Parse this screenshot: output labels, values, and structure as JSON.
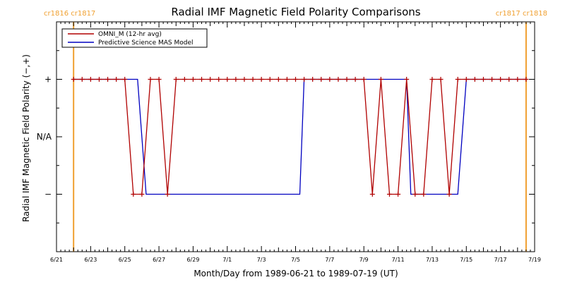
{
  "chart_data": {
    "type": "line",
    "title": "Radial IMF Magnetic Field Polarity Comparisons",
    "xlabel": "Month/Day from 1989-06-21 to 1989-07-19 (UT)",
    "ylabel": "Radial IMF Magnetic Field Polarity (−,+)",
    "xlim": [
      "1989-06-21",
      "1989-07-19"
    ],
    "ylim": [
      -2,
      2
    ],
    "y_tick_values": [
      1,
      0,
      -1
    ],
    "y_tick_labels": [
      "+",
      "N/A",
      "−"
    ],
    "x_tick_labels": [
      "6/21",
      "6/23",
      "6/25",
      "6/27",
      "6/29",
      "7/1",
      "7/3",
      "7/5",
      "7/7",
      "7/9",
      "7/11",
      "7/13",
      "7/15",
      "7/17",
      "7/19"
    ],
    "grid": false,
    "legend_position": "top-left",
    "carrington_markers": [
      {
        "date": "1989-06-22T00:00",
        "label": "cr1816 cr1817",
        "color": "#f0a030"
      },
      {
        "date": "1989-07-18T12:00",
        "label": "cr1817 cr1818",
        "color": "#f0a030"
      }
    ],
    "series": [
      {
        "name": "OMNI_M (12-hr avg)",
        "color": "#b00000",
        "marker": "+",
        "x": [
          "1989-06-22T00:00",
          "1989-06-22T12:00",
          "1989-06-23T00:00",
          "1989-06-23T12:00",
          "1989-06-24T00:00",
          "1989-06-24T12:00",
          "1989-06-25T00:00",
          "1989-06-25T12:00",
          "1989-06-26T00:00",
          "1989-06-26T12:00",
          "1989-06-27T00:00",
          "1989-06-27T12:00",
          "1989-06-28T00:00",
          "1989-06-28T12:00",
          "1989-06-29T00:00",
          "1989-06-29T12:00",
          "1989-06-30T00:00",
          "1989-06-30T12:00",
          "1989-07-01T00:00",
          "1989-07-01T12:00",
          "1989-07-02T00:00",
          "1989-07-02T12:00",
          "1989-07-03T00:00",
          "1989-07-03T12:00",
          "1989-07-04T00:00",
          "1989-07-04T12:00",
          "1989-07-05T00:00",
          "1989-07-05T12:00",
          "1989-07-06T00:00",
          "1989-07-06T12:00",
          "1989-07-07T00:00",
          "1989-07-07T12:00",
          "1989-07-08T00:00",
          "1989-07-08T12:00",
          "1989-07-09T00:00",
          "1989-07-09T12:00",
          "1989-07-10T00:00",
          "1989-07-10T12:00",
          "1989-07-11T00:00",
          "1989-07-11T12:00",
          "1989-07-12T00:00",
          "1989-07-12T12:00",
          "1989-07-13T00:00",
          "1989-07-13T12:00",
          "1989-07-14T00:00",
          "1989-07-14T12:00",
          "1989-07-15T00:00",
          "1989-07-15T12:00",
          "1989-07-16T00:00",
          "1989-07-16T12:00",
          "1989-07-17T00:00",
          "1989-07-17T12:00",
          "1989-07-18T00:00",
          "1989-07-18T12:00"
        ],
        "values": [
          1,
          1,
          1,
          1,
          1,
          1,
          1,
          -1,
          -1,
          1,
          1,
          -1,
          1,
          1,
          1,
          1,
          1,
          1,
          1,
          1,
          1,
          1,
          1,
          1,
          1,
          1,
          1,
          1,
          1,
          1,
          1,
          1,
          1,
          1,
          1,
          -1,
          1,
          -1,
          -1,
          1,
          -1,
          -1,
          1,
          1,
          -1,
          1,
          1,
          1,
          1,
          1,
          1,
          1,
          1,
          1
        ]
      },
      {
        "name": "Predictive Science MAS Model",
        "color": "#0000c0",
        "marker": "none",
        "x": [
          "1989-06-22T00:00",
          "1989-06-25T00:00",
          "1989-06-25T12:00",
          "1989-06-25T18:00",
          "1989-06-26T06:00",
          "1989-06-26T12:00",
          "1989-07-05T06:00",
          "1989-07-05T12:00",
          "1989-07-11T00:00",
          "1989-07-11T12:00",
          "1989-07-11T18:00",
          "1989-07-14T12:00",
          "1989-07-15T00:00",
          "1989-07-18T12:00"
        ],
        "values": [
          1,
          1,
          1,
          1,
          -1,
          -1,
          -1,
          1,
          1,
          1,
          -1,
          -1,
          1,
          1
        ]
      }
    ]
  }
}
